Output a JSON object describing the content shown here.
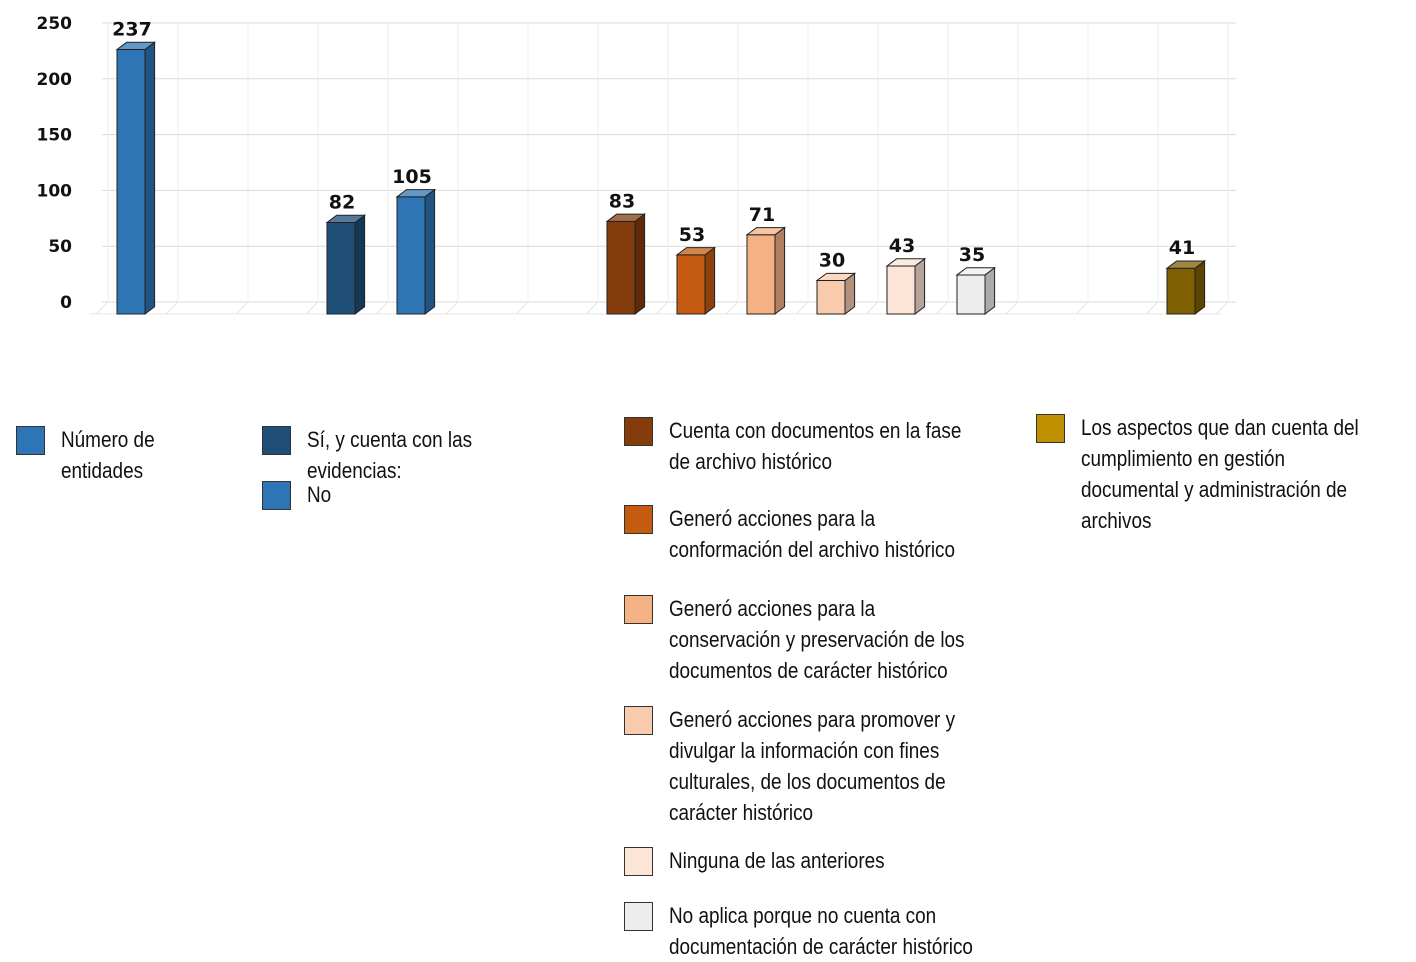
{
  "chart_data": {
    "type": "bar",
    "title": "",
    "xlabel": "",
    "ylabel": "",
    "ylim": [
      0,
      250
    ],
    "yticks": [
      0,
      50,
      100,
      150,
      200,
      250
    ],
    "grid": true,
    "legend_placement": "bottom",
    "series": [
      {
        "name": "Número de entidades",
        "color": "#2E75B6",
        "values": [
          237
        ]
      },
      {
        "name": "Sí, y cuenta con las evidencias:",
        "color": "#1F4E79",
        "values": [
          82
        ]
      },
      {
        "name": "No",
        "color": "#2E75B6",
        "values": [
          105
        ]
      },
      {
        "name": "Cuenta con documentos en la fase de archivo histórico",
        "color": "#843C0C",
        "values": [
          83
        ]
      },
      {
        "name": "Generó acciones para la conformación del archivo histórico",
        "color": "#C55A11",
        "values": [
          53
        ]
      },
      {
        "name": "Generó acciones para la conservación y preservación de los documentos de carácter histórico",
        "color": "#F4B183",
        "values": [
          71
        ]
      },
      {
        "name": "Generó acciones para promover y divulgar la información con fines culturales, de los documentos de carácter histórico",
        "color": "#F8CBAD",
        "values": [
          30
        ]
      },
      {
        "name": "Ninguna de las anteriores",
        "color": "#FCE4D6",
        "values": [
          43
        ]
      },
      {
        "name": "No aplica porque no cuenta con documentación de carácter histórico",
        "color": "#EDEDED",
        "values": [
          35
        ]
      },
      {
        "name": "Los aspectos que dan cuenta del cumplimiento en gestión documental y administración de archivos",
        "color": "#7F6000",
        "legend_color": "#BF9000",
        "values": [
          41
        ]
      }
    ]
  }
}
